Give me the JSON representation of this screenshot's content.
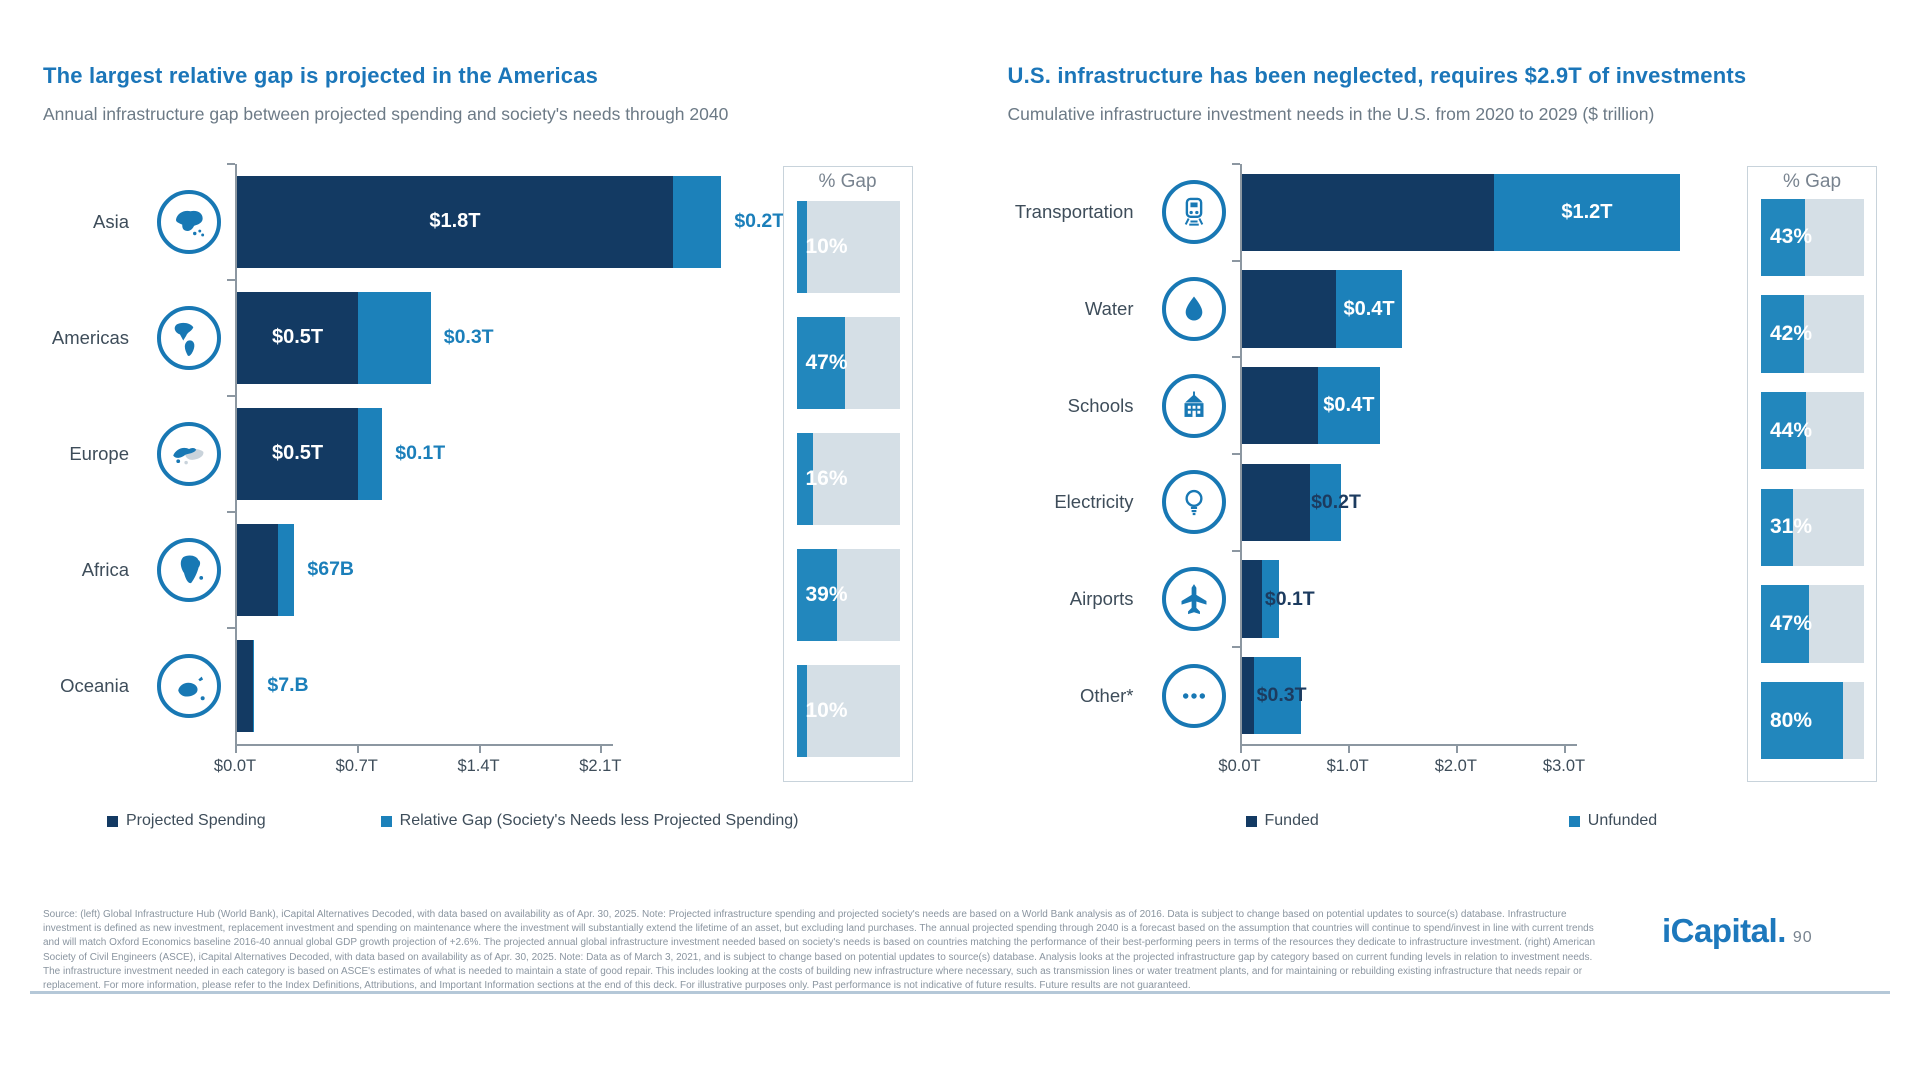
{
  "colors": {
    "funded_dark_navy": "#133A63",
    "gap_light_blue": "#1C81BA",
    "pct_fill_blue": "#2287BD",
    "pct_track_gray": "#D5DFE6",
    "title_blue": "#1B76B9",
    "subtitle_gray": "#6C7A86",
    "icon_ring_blue": "#1878B4",
    "value_label_blue": "#1B7FBA",
    "value_label_navy": "#1C3B5F"
  },
  "chart_data": [
    {
      "type": "bar",
      "orientation": "horizontal",
      "stacked": true,
      "title": "The largest relative gap is projected in the Americas",
      "subtitle": "Annual infrastructure gap between projected spending and society's needs through 2040",
      "categories": [
        "Asia",
        "Americas",
        "Europe",
        "Africa",
        "Oceania"
      ],
      "icons": [
        "asia-globe",
        "americas-globe",
        "europe-globe",
        "africa-globe",
        "oceania-globe"
      ],
      "series": [
        {
          "name": "Projected Spending",
          "values": [
            1.8,
            0.5,
            0.5,
            0.17,
            0.065
          ],
          "color": "#133A63"
        },
        {
          "name": "Relative Gap (Society's Needs less Projected Spending)",
          "values": [
            0.2,
            0.3,
            0.1,
            0.067,
            0.007
          ],
          "color": "#1C81BA"
        }
      ],
      "units": "$ trillion (annual)",
      "value_labels": {
        "spending": [
          "$1.8T",
          "$0.5T",
          "$0.5T",
          "",
          ""
        ],
        "gap": [
          "$0.2T",
          "$0.3T",
          "$0.1T",
          "$67B",
          "$7.B"
        ]
      },
      "pct_gap": {
        "header": "% Gap",
        "values": [
          10,
          47,
          16,
          39,
          10
        ],
        "labels": [
          "10%",
          "47%",
          "16%",
          "39%",
          "10%"
        ]
      },
      "x_ticks": {
        "labels": [
          "$0.0T",
          "$0.7T",
          "$1.4T",
          "$2.1T"
        ],
        "values": [
          0,
          0.7,
          1.4,
          2.1
        ]
      },
      "x_max": 2.17,
      "legend": [
        "Projected Spending",
        "Relative Gap (Society's Needs less Projected Spending)"
      ],
      "grid": false,
      "legend_position": "bottom"
    },
    {
      "type": "bar",
      "orientation": "horizontal",
      "stacked": true,
      "title": "U.S. infrastructure has been neglected, requires $2.9T of investments",
      "subtitle": "Cumulative infrastructure investment needs in the U.S. from 2020 to 2029 ($ trillion)",
      "categories": [
        "Transportation",
        "Water",
        "Schools",
        "Electricity",
        "Airports",
        "Other*"
      ],
      "icons": [
        "train",
        "water-drop",
        "school",
        "lightbulb",
        "airplane",
        "ellipsis"
      ],
      "series": [
        {
          "name": "Funded",
          "values": [
            1.62,
            0.61,
            0.49,
            0.44,
            0.13,
            0.08
          ],
          "color": "#133A63"
        },
        {
          "name": "Unfunded",
          "values": [
            1.2,
            0.42,
            0.4,
            0.2,
            0.11,
            0.3
          ],
          "color": "#1C81BA"
        }
      ],
      "units": "$ trillion (cumulative 2020-2029)",
      "value_labels": {
        "text": [
          "$1.2T",
          "$0.4T",
          "$0.4T",
          "$0.2T",
          "$0.1T",
          "$0.3T"
        ],
        "placement": [
          "in-unfunded",
          "in-unfunded",
          "in-unfunded",
          "end",
          "end",
          "end"
        ],
        "end_overlap": [
          0,
          0,
          0,
          30,
          14,
          44
        ]
      },
      "pct_gap": {
        "header": "% Gap",
        "values": [
          43,
          42,
          44,
          31,
          47,
          80
        ],
        "labels": [
          "43%",
          "42%",
          "44%",
          "31%",
          "47%",
          "80%"
        ]
      },
      "x_ticks": {
        "labels": [
          "$0.0T",
          "$1.0T",
          "$2.0T",
          "$3.0T"
        ],
        "values": [
          0,
          1,
          2,
          3
        ]
      },
      "x_max": 3.12,
      "legend": [
        "Funded",
        "Unfunded"
      ],
      "grid": false,
      "legend_position": "bottom"
    }
  ],
  "footer": {
    "source": "Source: (left) Global Infrastructure Hub (World Bank), iCapital Alternatives Decoded, with data based on availability as of Apr. 30, 2025. Note: Projected infrastructure spending and projected society's needs are based on a World Bank analysis as of 2016. Data is subject to change based on potential updates to source(s) database. Infrastructure investment is defined as new investment, replacement investment and spending on maintenance where the investment will substantially extend the lifetime of an asset, but excluding land purchases. The annual projected spending through 2040 is a forecast based on the assumption that countries will continue to spend/invest in line with current trends and will match Oxford Economics baseline 2016-40 annual global GDP growth projection of +2.6%. The projected annual global infrastructure investment needed based on society's needs is based on countries matching the performance of their best-performing peers in terms of the resources they dedicate to infrastructure investment. (right) American Society of Civil Engineers (ASCE), iCapital Alternatives Decoded, with data based on availability as of Apr. 30, 2025. Note: Data as of March 3, 2021, and is subject to change based on potential updates to source(s) database. Analysis looks at the projected infrastructure gap by category based on current funding levels in relation to investment needs. The infrastructure investment needed in each category is based on ASCE's estimates of what is needed to maintain a state of good repair. This includes looking at the costs of building new infrastructure where necessary, such as transmission lines or water treatment plants, and for maintaining or rebuilding existing infrastructure that needs repair or replacement. For more information, please refer to the Index Definitions, Attributions, and Important Information sections at the end of this deck. For illustrative purposes only. Past performance is not indicative of future results. Future results are not guaranteed.",
    "logo_text": "iCapital.",
    "page_number": "90"
  }
}
